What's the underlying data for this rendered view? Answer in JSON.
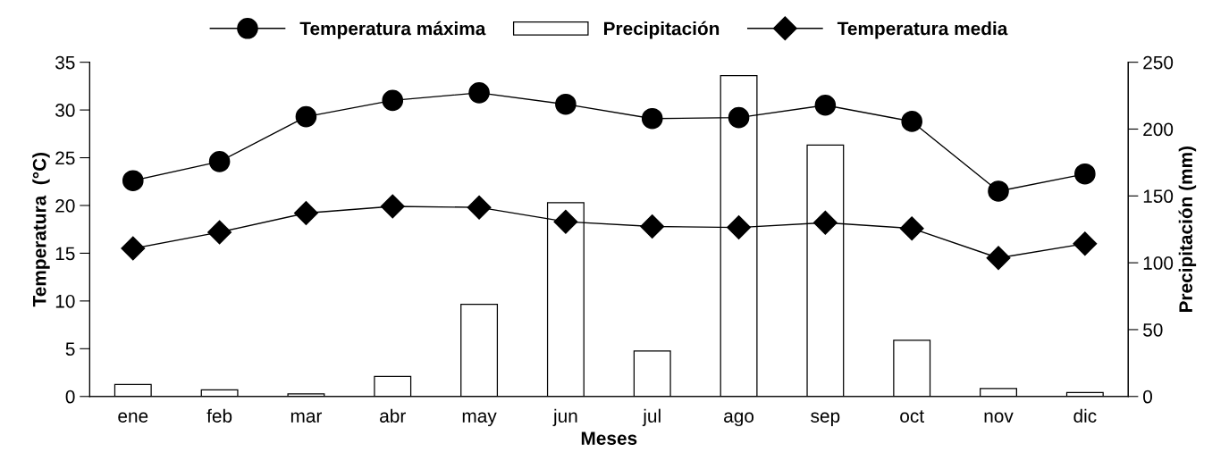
{
  "chart_data": {
    "type": "line",
    "xlabel": "Meses",
    "ylabel": "Temperatura  (°C)",
    "y2label": "Precipitación (mm)",
    "categories": [
      "ene",
      "feb",
      "mar",
      "abr",
      "may",
      "jun",
      "jul",
      "ago",
      "sep",
      "oct",
      "nov",
      "dic"
    ],
    "series": [
      {
        "name": "Temperatura máxima",
        "color": "#000000",
        "marker": "circle",
        "values": [
          22.6,
          24.6,
          29.3,
          31.0,
          31.8,
          30.6,
          29.1,
          29.2,
          30.5,
          28.8,
          21.5,
          23.3
        ]
      },
      {
        "name": "Precipitación",
        "type": "bar",
        "axis": "y2",
        "color": "#ffffff",
        "values": [
          9,
          5,
          2,
          15,
          69,
          145,
          34,
          240,
          188,
          42,
          6,
          3
        ]
      },
      {
        "name": "Temperatura media",
        "color": "#000000",
        "marker": "diamond",
        "values": [
          15.5,
          17.2,
          19.2,
          19.9,
          19.8,
          18.3,
          17.8,
          17.7,
          18.2,
          17.6,
          14.5,
          16.0
        ]
      }
    ],
    "ylim": [
      0,
      35
    ],
    "yticks": [
      0,
      5,
      10,
      15,
      20,
      25,
      30,
      35
    ],
    "y2lim": [
      0,
      250
    ],
    "y2ticks": [
      0,
      50,
      100,
      150,
      200,
      250
    ],
    "grid": false,
    "legend": "top"
  }
}
